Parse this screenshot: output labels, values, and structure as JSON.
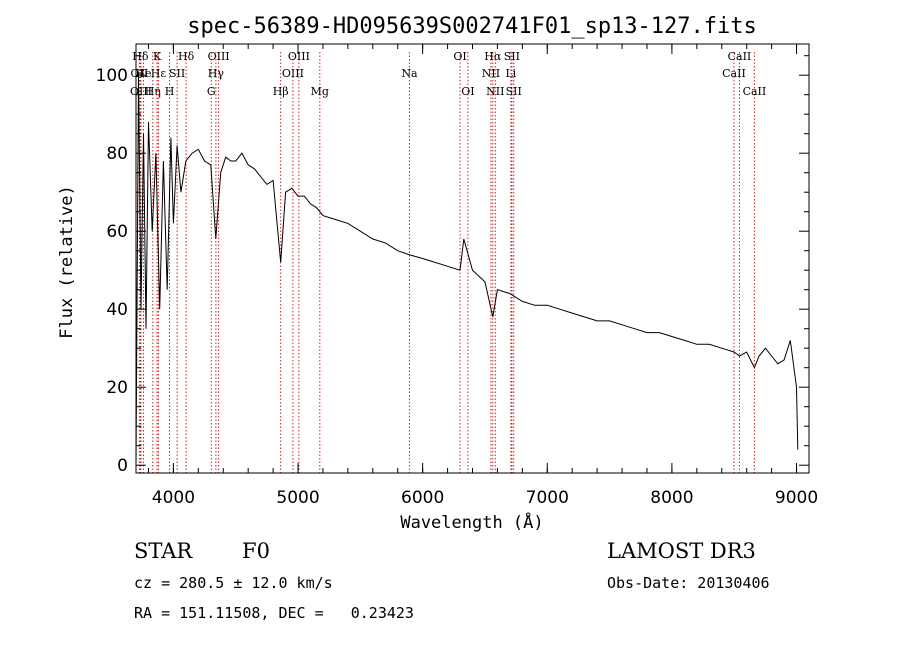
{
  "chart_data": {
    "type": "line",
    "title": "spec-56389-HD095639S002741F01_sp13-127.fits",
    "xlabel": "Wavelength (Å)",
    "ylabel": "Flux (relative)",
    "xlim": [
      3700,
      9100
    ],
    "ylim": [
      -2,
      108
    ],
    "x_ticks": [
      4000,
      5000,
      6000,
      7000,
      8000,
      9000
    ],
    "y_ticks": [
      0,
      20,
      40,
      60,
      80,
      100
    ],
    "series": [
      {
        "name": "flux",
        "x": [
          3700,
          3720,
          3740,
          3760,
          3780,
          3800,
          3830,
          3860,
          3890,
          3920,
          3950,
          3980,
          4000,
          4030,
          4060,
          4100,
          4150,
          4200,
          4250,
          4300,
          4340,
          4380,
          4420,
          4460,
          4500,
          4550,
          4600,
          4650,
          4700,
          4750,
          4800,
          4861,
          4900,
          4950,
          5000,
          5050,
          5100,
          5150,
          5200,
          5300,
          5400,
          5500,
          5600,
          5700,
          5800,
          5890,
          6000,
          6100,
          6200,
          6300,
          6330,
          6400,
          6500,
          6563,
          6600,
          6700,
          6800,
          6900,
          7000,
          7100,
          7200,
          7300,
          7400,
          7500,
          7600,
          7700,
          7800,
          7900,
          8000,
          8100,
          8200,
          8300,
          8400,
          8500,
          8542,
          8600,
          8662,
          8700,
          8750,
          8800,
          8850,
          8900,
          8950,
          9000,
          9010
        ],
        "y": [
          0,
          100,
          40,
          85,
          35,
          88,
          60,
          80,
          40,
          78,
          45,
          84,
          62,
          82,
          70,
          78,
          80,
          81,
          78,
          77,
          58,
          75,
          79,
          78,
          78,
          80,
          77,
          76,
          74,
          72,
          73,
          52,
          70,
          71,
          69,
          69,
          67,
          66,
          64,
          63,
          62,
          60,
          58,
          57,
          55,
          54,
          53,
          52,
          51,
          50,
          58,
          50,
          47,
          38,
          45,
          44,
          42,
          41,
          41,
          40,
          39,
          38,
          37,
          37,
          36,
          35,
          34,
          34,
          33,
          32,
          31,
          31,
          30,
          29,
          28,
          29,
          25,
          28,
          30,
          28,
          26,
          27,
          32,
          20,
          4
        ]
      }
    ],
    "lines": [
      {
        "label": "OII",
        "wavelength": 3727,
        "row": 2
      },
      {
        "label": "Hδ",
        "wavelength": 3735,
        "row": 1
      },
      {
        "label": "OIII",
        "wavelength": 3740,
        "row": 3
      },
      {
        "label": "He",
        "wavelength": 3760,
        "row": 2
      },
      {
        "label": "Hη",
        "wavelength": 3835,
        "row": 3
      },
      {
        "label": "K",
        "wavelength": 3869,
        "row": 1
      },
      {
        "label": "Hε",
        "wavelength": 3880,
        "row": 2
      },
      {
        "label": "H",
        "wavelength": 3969,
        "row": 3
      },
      {
        "label": "SII",
        "wavelength": 4030,
        "row": 2
      },
      {
        "label": "Hδ",
        "wavelength": 4102,
        "row": 1
      },
      {
        "label": "G",
        "wavelength": 4304,
        "row": 3
      },
      {
        "label": "Hγ",
        "wavelength": 4341,
        "row": 2
      },
      {
        "label": "OIII",
        "wavelength": 4363,
        "row": 1
      },
      {
        "label": "Hβ",
        "wavelength": 4861,
        "row": 3
      },
      {
        "label": "OIII",
        "wavelength": 4959,
        "row": 2
      },
      {
        "label": "OIII",
        "wavelength": 5007,
        "row": 1
      },
      {
        "label": "Mg",
        "wavelength": 5175,
        "row": 3
      },
      {
        "label": "Na",
        "wavelength": 5894,
        "row": 2
      },
      {
        "label": "OI",
        "wavelength": 6300,
        "row": 1
      },
      {
        "label": "OI",
        "wavelength": 6363,
        "row": 3
      },
      {
        "label": "NII",
        "wavelength": 6548,
        "row": 2
      },
      {
        "label": "Hα",
        "wavelength": 6563,
        "row": 1
      },
      {
        "label": "NII",
        "wavelength": 6583,
        "row": 3
      },
      {
        "label": "SII",
        "wavelength": 6716,
        "row": 1
      },
      {
        "label": "Li",
        "wavelength": 6708,
        "row": 2
      },
      {
        "label": "SII",
        "wavelength": 6731,
        "row": 3
      },
      {
        "label": "CaII",
        "wavelength": 8498,
        "row": 2
      },
      {
        "label": "CaII",
        "wavelength": 8542,
        "row": 1
      },
      {
        "label": "CaII",
        "wavelength": 8662,
        "row": 3
      }
    ]
  },
  "info": {
    "object_class": "STAR",
    "subclass": "F0",
    "survey": "LAMOST DR3",
    "cz": "cz = 280.5 ± 12.0 km/s",
    "obs_date": "Obs-Date: 20130406",
    "radec": "RA = 151.11508, DEC =   0.23423"
  },
  "colors": {
    "line_marker": "#cc2222",
    "spectrum": "#000000",
    "axis": "#000000"
  }
}
